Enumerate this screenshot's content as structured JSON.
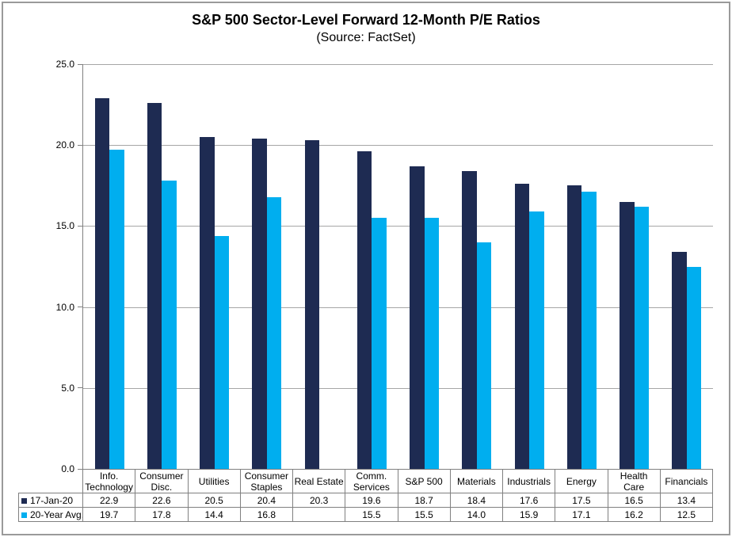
{
  "title": "S&P 500 Sector-Level Forward 12-Month P/E Ratios",
  "subtitle": "(Source: FactSet)",
  "colors": {
    "series1": "#1e2b52",
    "series2": "#00aeef",
    "gridline": "#a6a6a6",
    "axis_border": "#808080"
  },
  "y_axis": {
    "min": 0,
    "max": 25,
    "tick_labels": [
      "25.0",
      "20.0",
      "15.0",
      "10.0",
      "5.0",
      "0.0"
    ]
  },
  "table_header_labels": [
    "Info.\nTechnology",
    "Consumer\nDisc.",
    "Utilities",
    "Consumer\nStaples",
    "Real Estate",
    "Comm.\nServices",
    "S&P 500",
    "Materials",
    "Industrials",
    "Energy",
    "Health\nCare",
    "Financials"
  ],
  "chart_data": {
    "type": "bar",
    "title": "S&P 500 Sector-Level Forward 12-Month P/E Ratios",
    "subtitle": "(Source: FactSet)",
    "categories": [
      "Info. Technology",
      "Consumer Disc.",
      "Utilities",
      "Consumer Staples",
      "Real Estate",
      "Comm. Services",
      "S&P 500",
      "Materials",
      "Industrials",
      "Energy",
      "Health Care",
      "Financials"
    ],
    "series": [
      {
        "name": "17-Jan-20",
        "color": "#1e2b52",
        "values": [
          22.9,
          22.6,
          20.5,
          20.4,
          20.3,
          19.6,
          18.7,
          18.4,
          17.6,
          17.5,
          16.5,
          13.4
        ]
      },
      {
        "name": "20-Year Avg.",
        "color": "#00aeef",
        "values": [
          19.7,
          17.8,
          14.4,
          16.8,
          null,
          15.5,
          15.5,
          14.0,
          15.9,
          17.1,
          16.2,
          12.5
        ]
      }
    ],
    "ylim": [
      0,
      25
    ],
    "grid": true,
    "gridline_interval": 5,
    "legend_position": "data-table-left",
    "data_table_shown": true,
    "value_decimals": 1
  }
}
